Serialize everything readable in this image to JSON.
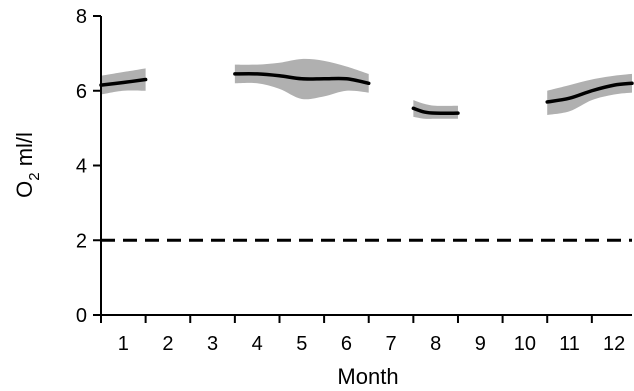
{
  "chart_data": {
    "type": "line",
    "xlabel": "Month",
    "ylabel_main": "O",
    "ylabel_sub": "2",
    "ylabel_unit": " ml/l",
    "xlim": [
      0.5,
      12.4
    ],
    "ylim": [
      0,
      8
    ],
    "x_ticks": [
      1,
      2,
      3,
      4,
      5,
      6,
      7,
      8,
      9,
      10,
      11,
      12
    ],
    "y_ticks": [
      0,
      2,
      4,
      6,
      8
    ],
    "grid": false,
    "colors": {
      "mean": "#000000",
      "band": "#b0b0b0",
      "reference": "#000000"
    },
    "reference_line": {
      "y": 2,
      "style": "dashed"
    },
    "segments": [
      {
        "x": [
          0.5,
          1.0,
          1.5
        ],
        "y": [
          6.15,
          6.22,
          6.3
        ],
        "lower": [
          5.9,
          6.0,
          6.0
        ],
        "upper": [
          6.4,
          6.5,
          6.6
        ]
      },
      {
        "x": [
          3.5,
          4.0,
          4.5,
          5.0,
          5.5,
          6.0,
          6.5
        ],
        "y": [
          6.45,
          6.45,
          6.4,
          6.32,
          6.32,
          6.32,
          6.2
        ],
        "lower": [
          6.2,
          6.2,
          6.05,
          5.78,
          5.85,
          6.0,
          5.95
        ],
        "upper": [
          6.7,
          6.7,
          6.75,
          6.85,
          6.8,
          6.65,
          6.45
        ]
      },
      {
        "x": [
          7.5,
          7.75,
          8.0,
          8.5
        ],
        "y": [
          5.53,
          5.43,
          5.4,
          5.4
        ],
        "lower": [
          5.3,
          5.25,
          5.25,
          5.25
        ],
        "upper": [
          5.75,
          5.65,
          5.6,
          5.6
        ]
      },
      {
        "x": [
          10.5,
          11.0,
          11.5,
          12.0,
          12.4
        ],
        "y": [
          5.7,
          5.8,
          6.0,
          6.15,
          6.2
        ],
        "lower": [
          5.35,
          5.45,
          5.75,
          5.9,
          5.95
        ],
        "upper": [
          6.0,
          6.15,
          6.3,
          6.4,
          6.45
        ]
      }
    ]
  }
}
